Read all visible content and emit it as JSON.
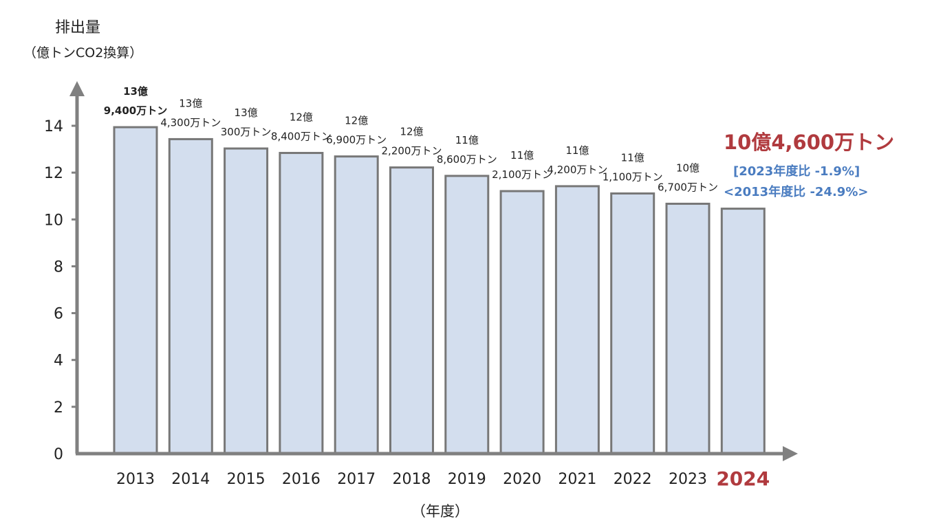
{
  "chart_data": {
    "type": "bar",
    "ylabel": "排出量",
    "ylabel_unit": "（億トンCO2換算）",
    "xlabel": "（年度）",
    "categories": [
      "2013",
      "2014",
      "2015",
      "2016",
      "2017",
      "2018",
      "2019",
      "2020",
      "2021",
      "2022",
      "2023",
      "2024"
    ],
    "values": [
      13.94,
      13.43,
      13.03,
      12.84,
      12.69,
      12.22,
      11.86,
      11.21,
      11.42,
      11.11,
      10.67,
      10.46
    ],
    "data_labels": [
      [
        "13億",
        "9,400万トン"
      ],
      [
        "13億",
        "4,300万トン"
      ],
      [
        "13億",
        "300万トン"
      ],
      [
        "12億",
        "8,400万トン"
      ],
      [
        "12億",
        "6,900万トン"
      ],
      [
        "12億",
        "2,200万トン"
      ],
      [
        "11億",
        "8,600万トン"
      ],
      [
        "11億",
        "2,100万トン"
      ],
      [
        "11億",
        "4,200万トン"
      ],
      [
        "11億",
        "1,100万トン"
      ],
      [
        "10億",
        "6,700万トン"
      ]
    ],
    "yticks": [
      0,
      2,
      4,
      6,
      8,
      10,
      12,
      14
    ],
    "ylim": [
      0,
      14
    ],
    "grid": false,
    "bar_color": "#d3deee",
    "bar_border_color": "#777777",
    "axis_color": "#808080",
    "highlight_category": "2024",
    "highlight_color": "#b03a3e",
    "highlight": {
      "total": "10億4,600万トン",
      "vs_prev": "[2023年度比  -1.9%]",
      "vs_base": "<2013年度比  -24.9%>",
      "total_color": "#b03a3e",
      "compare_color": "#4a7cc0"
    }
  }
}
